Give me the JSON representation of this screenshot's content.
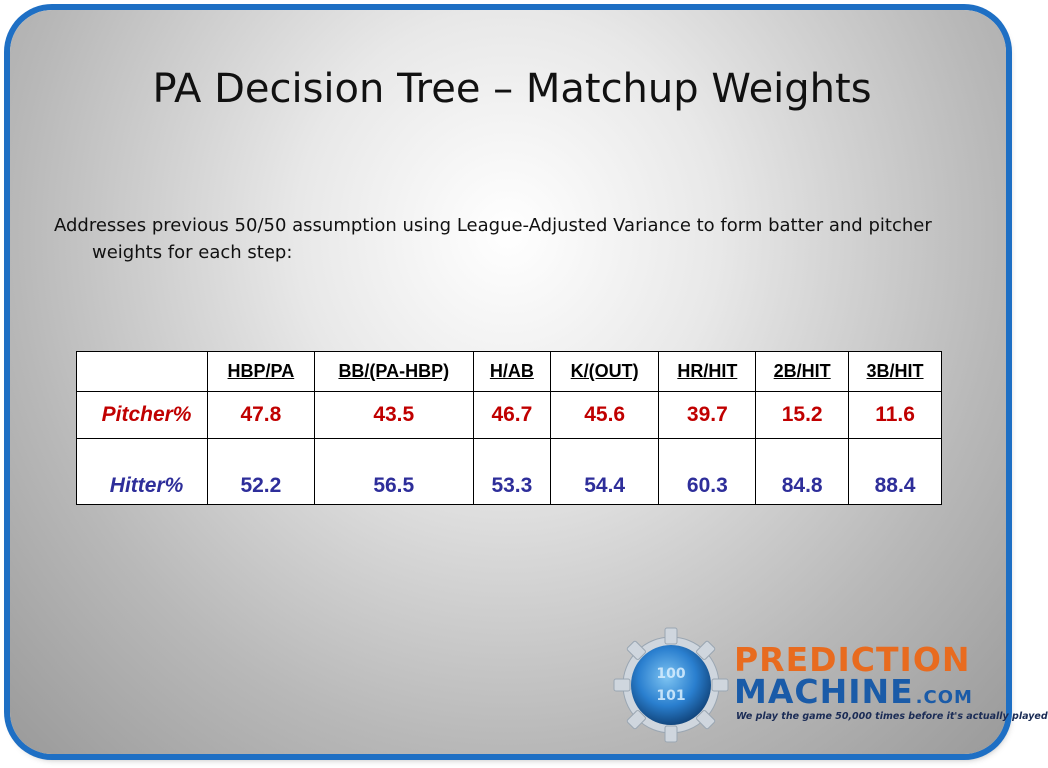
{
  "slide": {
    "title": "PA Decision Tree – Matchup Weights",
    "body": "Addresses previous 50/50 assumption using League-Adjusted Variance to form batter and pitcher weights for each step:"
  },
  "table": {
    "headers": [
      "",
      "HBP/PA",
      "BB/(PA-HBP)",
      "H/AB",
      "K/(OUT)",
      "HR/HIT",
      "2B/HIT",
      "3B/HIT"
    ],
    "rows": [
      {
        "label": "Pitcher%",
        "values": [
          "47.8",
          "43.5",
          "46.7",
          "45.6",
          "39.7",
          "15.2",
          "11.6"
        ],
        "color": "#c00000"
      },
      {
        "label": "Hitter%",
        "values": [
          "52.2",
          "56.5",
          "53.3",
          "54.4",
          "60.3",
          "84.8",
          "88.4"
        ],
        "color": "#2e2e9a"
      }
    ]
  },
  "logo": {
    "word1": "PREDICTION",
    "word2": "MACHINE",
    "suffix": ".COM",
    "tagline": "We play the game 50,000 times before it's actually played",
    "gear_digits": [
      "100",
      "101"
    ],
    "icon": "gear-binary-globe-icon"
  },
  "colors": {
    "frame_border": "#1e6fc4",
    "pitcher": "#c00000",
    "hitter": "#2e2e9a",
    "brand_orange": "#e86b1f",
    "brand_blue": "#1a5ba8"
  }
}
